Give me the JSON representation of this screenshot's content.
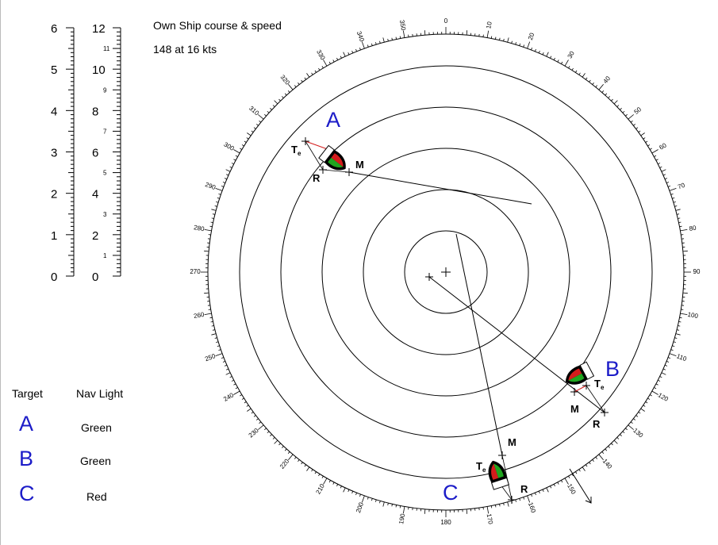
{
  "own_ship": {
    "title": "Own  Ship course & speed",
    "value": "148 at 16 kts"
  },
  "scales": {
    "left": {
      "ticks": [
        "0",
        "1",
        "2",
        "3",
        "4",
        "5",
        "6"
      ]
    },
    "right": {
      "ticks": [
        "0",
        "1",
        "2",
        "3",
        "4",
        "5",
        "6",
        "7",
        "8",
        "9",
        "10",
        "11",
        "12"
      ]
    }
  },
  "legend": {
    "target_header": "Target",
    "nav_light_header": "Nav Light",
    "rows": [
      {
        "target": "A",
        "light": "Green"
      },
      {
        "target": "B",
        "light": "Green"
      },
      {
        "target": "C",
        "light": "Red"
      }
    ]
  },
  "bearing_labels": [
    "0",
    "10",
    "20",
    "30",
    "40",
    "50",
    "60",
    "70",
    "80",
    "90",
    "100",
    "110",
    "120",
    "130",
    "140",
    "150",
    "160",
    "170",
    "180",
    "190",
    "200",
    "210",
    "220",
    "230",
    "240",
    "250",
    "260",
    "270",
    "280",
    "290",
    "300",
    "310",
    "320",
    "330",
    "340",
    "350"
  ],
  "targets": [
    {
      "id": "A",
      "te": "T",
      "te_sub": "e",
      "r": "R",
      "m": "M"
    },
    {
      "id": "B",
      "te": "T",
      "te_sub": "e",
      "r": "R",
      "m": "M"
    },
    {
      "id": "C",
      "te": "T",
      "te_sub": "e",
      "r": "R",
      "m": "M"
    }
  ],
  "colors": {
    "label_blue": "#1c1cc8",
    "green_light": "#1fa51f",
    "red_light": "#d41c1c",
    "hull": "#000000"
  }
}
